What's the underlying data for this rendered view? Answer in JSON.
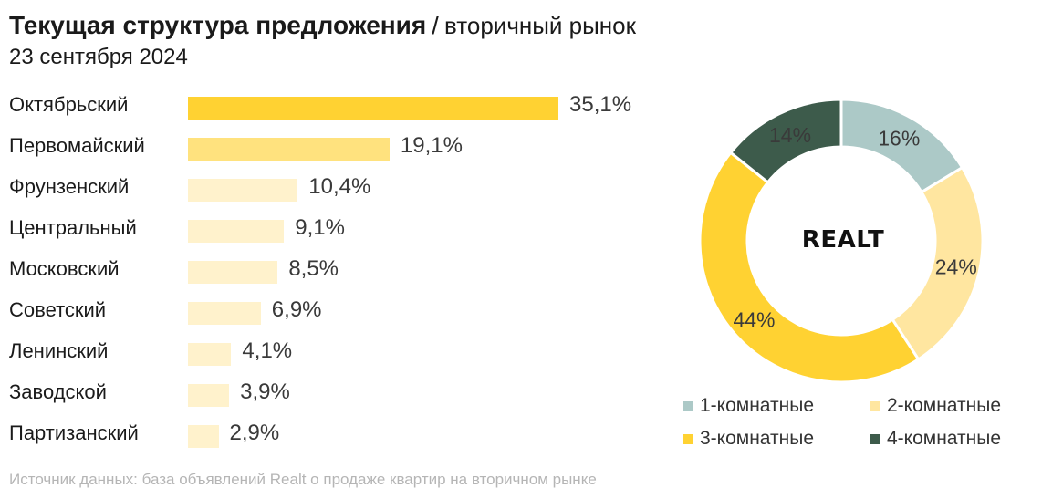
{
  "header": {
    "title": "Текущая структура предложения",
    "separator": "/",
    "subtitle": "вторичный рынок",
    "date": "23 сентября 2024"
  },
  "logo_text": "REALT",
  "source": "Источник данных: база объявлений Realt о продаже квартир на вторичном рынке",
  "chart_data": [
    {
      "type": "bar",
      "orientation": "horizontal",
      "categories": [
        "Октябрьский",
        "Первомайский",
        "Фрунзенский",
        "Центральный",
        "Московский",
        "Советский",
        "Ленинский",
        "Заводской",
        "Партизанский"
      ],
      "values": [
        35.1,
        19.1,
        10.4,
        9.1,
        8.5,
        6.9,
        4.1,
        3.9,
        2.9
      ],
      "value_labels": [
        "35,1%",
        "19,1%",
        "10,4%",
        "9,1%",
        "8,5%",
        "6,9%",
        "4,1%",
        "3,9%",
        "2,9%"
      ],
      "unit": "%",
      "colors": [
        "#ffd232",
        "#ffe27e",
        "#fff2cc",
        "#fff2cc",
        "#fff2cc",
        "#fff2cc",
        "#fff2cc",
        "#fff2cc",
        "#fff2cc"
      ],
      "xlim": [
        0,
        45
      ],
      "grid": false
    },
    {
      "type": "pie",
      "donut": true,
      "labels": [
        "1-комнатные",
        "2-комнатные",
        "3-комнатные",
        "4-комнатные"
      ],
      "values": [
        16,
        24,
        44,
        14
      ],
      "value_labels": [
        "16%",
        "24%",
        "44%",
        "14%"
      ],
      "colors": [
        "#acc9c7",
        "#ffe6a0",
        "#ffd232",
        "#3d5b4b"
      ],
      "legend_position": "bottom"
    }
  ]
}
